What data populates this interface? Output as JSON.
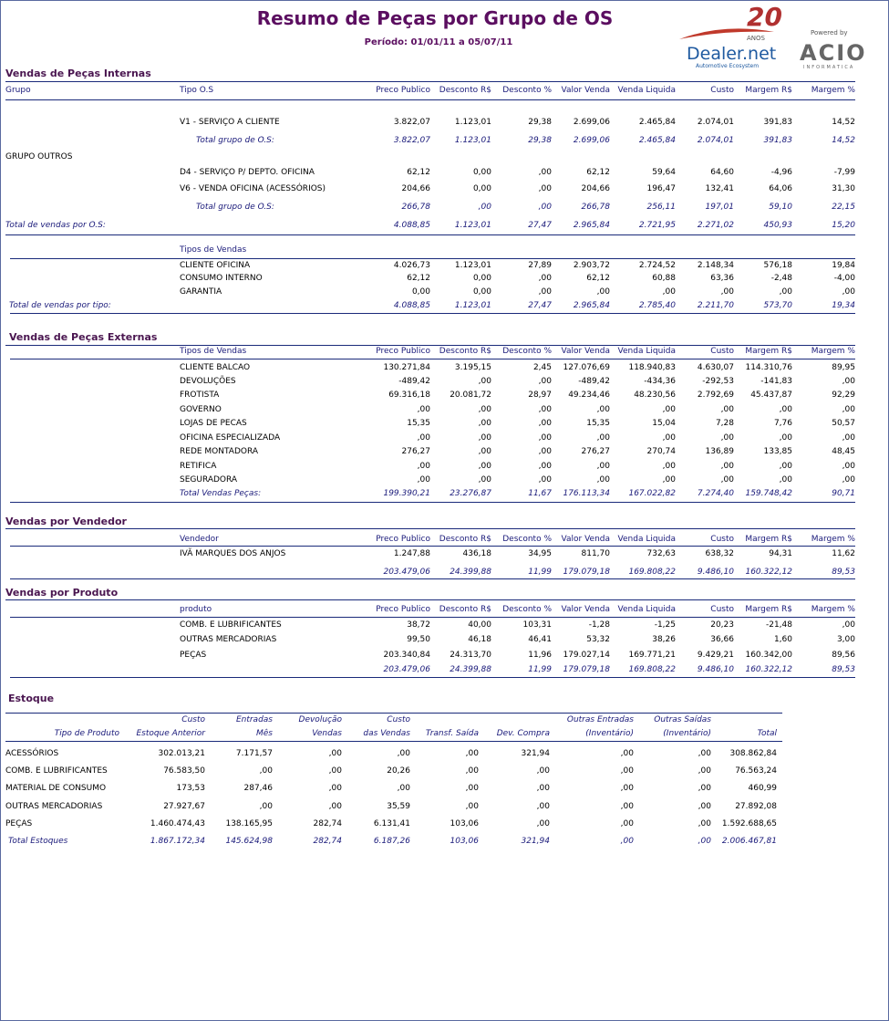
{
  "header": {
    "title": "Resumo de Peças por Grupo de OS",
    "period": "Período: 01/01/11 a 05/07/11",
    "logo": {
      "anniversary": "20",
      "anniversary_sub": "ANOS",
      "brand": "Dealer.net",
      "tagline": "Automotive Ecosystem",
      "powered": "Powered by",
      "company": "ACIO",
      "company_sub": "INFORMATICA"
    }
  },
  "sections": [
    {
      "title": "Vendas de Peças Internas",
      "columns": {
        "group": "Grupo",
        "type": "Tipo O.S",
        "metrics": [
          "Preco Publico",
          "Desconto R$",
          "Desconto %",
          "Valor Venda",
          "Venda Liquida",
          "Custo",
          "Margem R$",
          "Margem %"
        ]
      },
      "rows": [
        {
          "type": "V1 - SERVIÇO A CLIENTE",
          "values": [
            "3.822,07",
            "1.123,01",
            "29,38",
            "2.699,06",
            "2.465,84",
            "2.074,01",
            "391,83",
            "14,52"
          ]
        },
        {
          "total": "Total grupo de O.S:",
          "values": [
            "3.822,07",
            "1.123,01",
            "29,38",
            "2.699,06",
            "2.465,84",
            "2.074,01",
            "391,83",
            "14,52"
          ]
        },
        {
          "group": "GRUPO OUTROS"
        },
        {
          "type": "D4 - SERVIÇO P/ DEPTO. OFICINA",
          "values": [
            "62,12",
            "0,00",
            ",00",
            "62,12",
            "59,64",
            "64,60",
            "-4,96",
            "-7,99"
          ]
        },
        {
          "type": "V6 - VENDA OFICINA (ACESSÓRIOS)",
          "values": [
            "204,66",
            "0,00",
            ",00",
            "204,66",
            "196,47",
            "132,41",
            "64,06",
            "31,30"
          ]
        },
        {
          "total": "Total grupo de O.S:",
          "values": [
            "266,78",
            ",00",
            ",00",
            "266,78",
            "256,11",
            "197,01",
            "59,10",
            "22,15"
          ]
        },
        {
          "grand_total": "Total de vendas por O.S:",
          "values": [
            "4.088,85",
            "1.123,01",
            "27,47",
            "2.965,84",
            "2.721,95",
            "2.271,02",
            "450,93",
            "15,20"
          ]
        },
        {
          "subheader": "Tipos de Vendas"
        },
        {
          "type": "CLIENTE OFICINA",
          "values": [
            "4.026,73",
            "1.123,01",
            "27,89",
            "2.903,72",
            "2.724,52",
            "2.148,34",
            "576,18",
            "19,84"
          ]
        },
        {
          "type": "CONSUMO INTERNO",
          "values": [
            "62,12",
            "0,00",
            ",00",
            "62,12",
            "60,88",
            "63,36",
            "-2,48",
            "-4,00"
          ]
        },
        {
          "type": "GARANTIA",
          "values": [
            "0,00",
            "0,00",
            ",00",
            ",00",
            ",00",
            ",00",
            ",00",
            ",00"
          ]
        },
        {
          "grand_total": "Total de vendas por tipo:",
          "values": [
            "4.088,85",
            "1.123,01",
            "27,47",
            "2.965,84",
            "2.785,40",
            "2.211,70",
            "573,70",
            "19,34"
          ]
        }
      ]
    },
    {
      "title": "Vendas de Peças Externas",
      "columns": {
        "type": "Tipos de Vendas",
        "metrics": [
          "Preco Publico",
          "Desconto R$",
          "Desconto %",
          "Valor Venda",
          "Venda Liquida",
          "Custo",
          "Margem R$",
          "Margem %"
        ]
      },
      "rows": [
        {
          "type": "CLIENTE BALCAO",
          "values": [
            "130.271,84",
            "3.195,15",
            "2,45",
            "127.076,69",
            "118.940,83",
            "4.630,07",
            "114.310,76",
            "89,95"
          ]
        },
        {
          "type": "DEVOLUÇÕES",
          "values": [
            "-489,42",
            ",00",
            ",00",
            "-489,42",
            "-434,36",
            "-292,53",
            "-141,83",
            ",00"
          ]
        },
        {
          "type": "FROTISTA",
          "values": [
            "69.316,18",
            "20.081,72",
            "28,97",
            "49.234,46",
            "48.230,56",
            "2.792,69",
            "45.437,87",
            "92,29"
          ]
        },
        {
          "type": "GOVERNO",
          "values": [
            ",00",
            ",00",
            ",00",
            ",00",
            ",00",
            ",00",
            ",00",
            ",00"
          ]
        },
        {
          "type": "LOJAS DE PECAS",
          "values": [
            "15,35",
            ",00",
            ",00",
            "15,35",
            "15,04",
            "7,28",
            "7,76",
            "50,57"
          ]
        },
        {
          "type": "OFICINA ESPECIALIZADA",
          "values": [
            ",00",
            ",00",
            ",00",
            ",00",
            ",00",
            ",00",
            ",00",
            ",00"
          ]
        },
        {
          "type": "REDE MONTADORA",
          "values": [
            "276,27",
            ",00",
            ",00",
            "276,27",
            "270,74",
            "136,89",
            "133,85",
            "48,45"
          ]
        },
        {
          "type": "RETIFICA",
          "values": [
            ",00",
            ",00",
            ",00",
            ",00",
            ",00",
            ",00",
            ",00",
            ",00"
          ]
        },
        {
          "type": "SEGURADORA",
          "values": [
            ",00",
            ",00",
            ",00",
            ",00",
            ",00",
            ",00",
            ",00",
            ",00"
          ]
        },
        {
          "total": "Total Vendas Peças:",
          "values": [
            "199.390,21",
            "23.276,87",
            "11,67",
            "176.113,34",
            "167.022,82",
            "7.274,40",
            "159.748,42",
            "90,71"
          ]
        }
      ]
    },
    {
      "title": "Vendas por Vendedor",
      "columns": {
        "type": "Vendedor",
        "metrics": [
          "Preco Publico",
          "Desconto R$",
          "Desconto %",
          "Valor Venda",
          "Venda Liquida",
          "Custo",
          "Margem R$",
          "Margem %"
        ]
      },
      "rows": [
        {
          "type": "IVÃ MARQUES DOS ANJOS",
          "values": [
            "1.247,88",
            "436,18",
            "34,95",
            "811,70",
            "732,63",
            "638,32",
            "94,31",
            "11,62"
          ]
        },
        {
          "values": [
            "203.479,06",
            "24.399,88",
            "11,99",
            "179.079,18",
            "169.808,22",
            "9.486,10",
            "160.322,12",
            "89,53"
          ]
        }
      ]
    },
    {
      "title": "Vendas por Produto",
      "columns": {
        "type": "produto",
        "metrics": [
          "Preco Publico",
          "Desconto R$",
          "Desconto %",
          "Valor Venda",
          "Venda Liquida",
          "Custo",
          "Margem R$",
          "Margem %"
        ]
      },
      "rows": [
        {
          "type": "COMB. E LUBRIFICANTES",
          "values": [
            "38,72",
            "40,00",
            "103,31",
            "-1,28",
            "-1,25",
            "20,23",
            "-21,48",
            ",00"
          ]
        },
        {
          "type": "OUTRAS MERCADORIAS",
          "values": [
            "99,50",
            "46,18",
            "46,41",
            "53,32",
            "38,26",
            "36,66",
            "1,60",
            "3,00"
          ]
        },
        {
          "type": "PEÇAS",
          "values": [
            "203.340,84",
            "24.313,70",
            "11,96",
            "179.027,14",
            "169.771,21",
            "9.429,21",
            "160.342,00",
            "89,56"
          ]
        },
        {
          "values": [
            "203.479,06",
            "24.399,88",
            "11,99",
            "179.079,18",
            "169.808,22",
            "9.486,10",
            "160.322,12",
            "89,53"
          ]
        }
      ]
    }
  ],
  "stock": {
    "title": "Estoque",
    "columns": [
      [
        "Tipo de Produto"
      ],
      [
        "Custo",
        "Estoque Anterior"
      ],
      [
        "Entradas",
        "Mês"
      ],
      [
        "Devolução",
        "Vendas"
      ],
      [
        "Custo",
        "das Vendas"
      ],
      [
        "Transf. Saída"
      ],
      [
        "Dev. Compra"
      ],
      [
        "Outras Entradas",
        "(Inventário)"
      ],
      [
        "Outras Saídas",
        "(Inventário)"
      ],
      [
        "Total"
      ]
    ],
    "rows": [
      {
        "product": "ACESSÓRIOS",
        "values": [
          "302.013,21",
          "7.171,57",
          ",00",
          ",00",
          ",00",
          "321,94",
          ",00",
          ",00",
          "308.862,84"
        ]
      },
      {
        "product": "COMB. E LUBRIFICANTES",
        "values": [
          "76.583,50",
          ",00",
          ",00",
          "20,26",
          ",00",
          ",00",
          ",00",
          ",00",
          "76.563,24"
        ]
      },
      {
        "product": "MATERIAL DE CONSUMO",
        "values": [
          "173,53",
          "287,46",
          ",00",
          ",00",
          ",00",
          ",00",
          ",00",
          ",00",
          "460,99"
        ]
      },
      {
        "product": "OUTRAS MERCADORIAS",
        "values": [
          "27.927,67",
          ",00",
          ",00",
          "35,59",
          ",00",
          ",00",
          ",00",
          ",00",
          "27.892,08"
        ]
      },
      {
        "product": "PEÇAS",
        "values": [
          "1.460.474,43",
          "138.165,95",
          "282,74",
          "6.131,41",
          "103,06",
          ",00",
          ",00",
          ",00",
          "1.592.688,65"
        ]
      }
    ],
    "total": {
      "label": "Total Estoques",
      "values": [
        "1.867.172,34",
        "145.624,98",
        "282,74",
        "6.187,26",
        "103,06",
        "321,94",
        ",00",
        ",00",
        "2.006.467,81"
      ]
    }
  }
}
